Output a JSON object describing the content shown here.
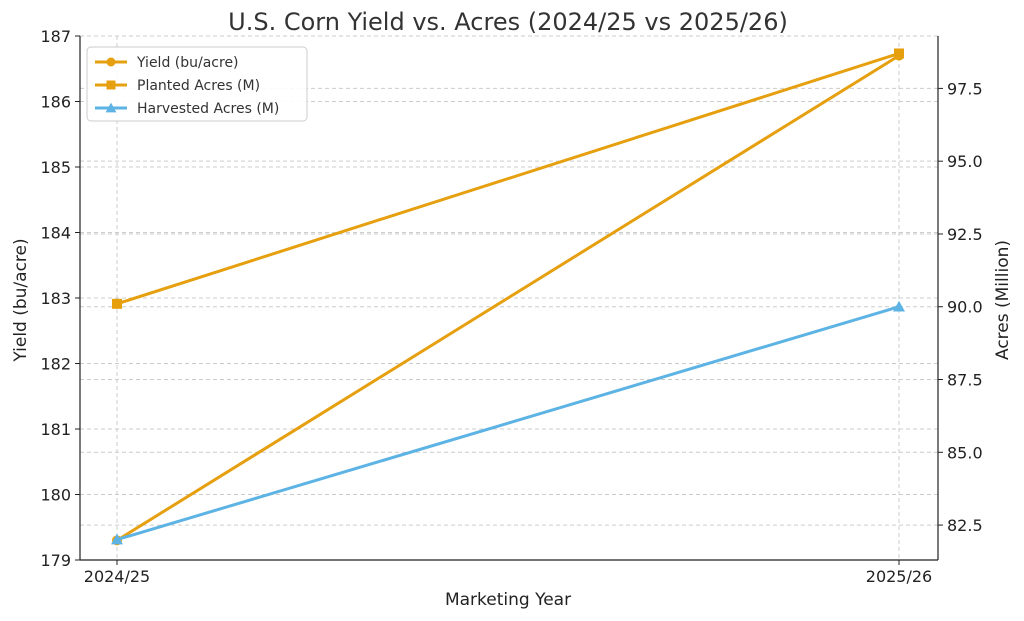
{
  "chart_data": {
    "type": "line",
    "title": "U.S. Corn Yield vs. Acres (2024/25 vs 2025/26)",
    "xlabel": "Marketing Year",
    "ylabel_left": "Yield (bu/acre)",
    "ylabel_right": "Acres (Million)",
    "categories": [
      "2024/25",
      "2025/26"
    ],
    "ylim_left": [
      179,
      187
    ],
    "ylim_right": [
      81.3,
      99.3
    ],
    "yticks_left": [
      179,
      180,
      181,
      182,
      183,
      184,
      185,
      186,
      187
    ],
    "yticks_right": [
      82.5,
      85.0,
      87.5,
      90.0,
      92.5,
      95.0,
      97.5
    ],
    "yticks_right_labels": [
      "82.5",
      "85.0",
      "87.5",
      "90.0",
      "92.5",
      "95.0",
      "97.5"
    ],
    "grid": true,
    "legend_position": "top-left",
    "series": [
      {
        "name": "Yield (bu/acre)",
        "axis": "left",
        "values": [
          179.3,
          186.7
        ],
        "color": "#e6a00f",
        "marker": "circle"
      },
      {
        "name": "Planted Acres (M)",
        "axis": "right",
        "values": [
          90.1,
          98.7
        ],
        "color": "#e6a00f",
        "marker": "square"
      },
      {
        "name": "Harvested Acres (M)",
        "axis": "right",
        "values": [
          82.0,
          90.0
        ],
        "color": "#5db3e4",
        "marker": "triangle"
      }
    ]
  }
}
